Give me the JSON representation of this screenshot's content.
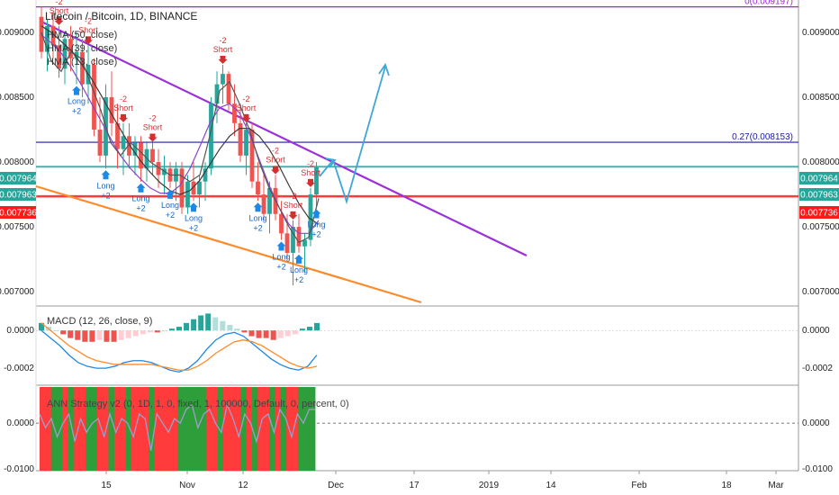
{
  "chart_data": {
    "type": "candlestick",
    "title": "Litecoin / Bitcoin, 1D, BINANCE",
    "indicators": [
      "HMA (50, close)",
      "HMA (39, close)",
      "HMA (13, close)"
    ],
    "x_ticks": [
      "15",
      "Nov",
      "12",
      "Dec",
      "17",
      "2019",
      "14",
      "Feb",
      "18",
      "Mar"
    ],
    "y_ticks": [
      "0.009000",
      "0.008500",
      "0.008000",
      "0.007500",
      "0.007000"
    ],
    "ylim": [
      0.00689,
      0.00925
    ],
    "price_badges": [
      {
        "label": "0.007964",
        "value": 0.007964,
        "color": "#26a69a"
      },
      {
        "label": "0.007963",
        "value": 0.007963,
        "color": "#26a69a"
      },
      {
        "label": "0.007736",
        "value": 0.007736,
        "color": "#ff1a1a"
      }
    ],
    "fib_levels": [
      {
        "label": "0(0.009197)",
        "value": 0.009197,
        "color": "#a020f0"
      },
      {
        "label": "0.27(0.008153)",
        "value": 0.008153,
        "color": "#1a1aa8"
      }
    ],
    "candles": [
      {
        "o": 0.00912,
        "h": 0.0092,
        "l": 0.0088,
        "c": 0.00885
      },
      {
        "o": 0.00885,
        "h": 0.0091,
        "l": 0.0087,
        "c": 0.00905
      },
      {
        "o": 0.00905,
        "h": 0.00915,
        "l": 0.0088,
        "c": 0.0089
      },
      {
        "o": 0.0089,
        "h": 0.00905,
        "l": 0.00865,
        "c": 0.00872
      },
      {
        "o": 0.00872,
        "h": 0.009,
        "l": 0.0086,
        "c": 0.00895
      },
      {
        "o": 0.00895,
        "h": 0.00905,
        "l": 0.0087,
        "c": 0.0088
      },
      {
        "o": 0.0088,
        "h": 0.009,
        "l": 0.0086,
        "c": 0.00885
      },
      {
        "o": 0.00885,
        "h": 0.00895,
        "l": 0.0085,
        "c": 0.0086
      },
      {
        "o": 0.0086,
        "h": 0.0089,
        "l": 0.00845,
        "c": 0.00875
      },
      {
        "o": 0.00875,
        "h": 0.0088,
        "l": 0.0082,
        "c": 0.00825
      },
      {
        "o": 0.00825,
        "h": 0.0085,
        "l": 0.008,
        "c": 0.00805
      },
      {
        "o": 0.00805,
        "h": 0.0086,
        "l": 0.00795,
        "c": 0.0085
      },
      {
        "o": 0.0085,
        "h": 0.0087,
        "l": 0.0082,
        "c": 0.0083
      },
      {
        "o": 0.0083,
        "h": 0.00845,
        "l": 0.00795,
        "c": 0.0081
      },
      {
        "o": 0.0081,
        "h": 0.0083,
        "l": 0.0079,
        "c": 0.0082
      },
      {
        "o": 0.0082,
        "h": 0.0083,
        "l": 0.00795,
        "c": 0.00805
      },
      {
        "o": 0.00805,
        "h": 0.0082,
        "l": 0.0079,
        "c": 0.00815
      },
      {
        "o": 0.00815,
        "h": 0.0082,
        "l": 0.00785,
        "c": 0.00795
      },
      {
        "o": 0.00795,
        "h": 0.00815,
        "l": 0.00785,
        "c": 0.0081
      },
      {
        "o": 0.0081,
        "h": 0.00815,
        "l": 0.0079,
        "c": 0.008
      },
      {
        "o": 0.008,
        "h": 0.0081,
        "l": 0.0078,
        "c": 0.0079
      },
      {
        "o": 0.0079,
        "h": 0.00805,
        "l": 0.00775,
        "c": 0.00795
      },
      {
        "o": 0.00795,
        "h": 0.008,
        "l": 0.0078,
        "c": 0.00785
      },
      {
        "o": 0.00785,
        "h": 0.008,
        "l": 0.0077,
        "c": 0.00795
      },
      {
        "o": 0.00795,
        "h": 0.008,
        "l": 0.0076,
        "c": 0.00765
      },
      {
        "o": 0.00765,
        "h": 0.0079,
        "l": 0.0076,
        "c": 0.00785
      },
      {
        "o": 0.00785,
        "h": 0.008,
        "l": 0.0077,
        "c": 0.00775
      },
      {
        "o": 0.00775,
        "h": 0.0079,
        "l": 0.00765,
        "c": 0.00785
      },
      {
        "o": 0.00785,
        "h": 0.008,
        "l": 0.0077,
        "c": 0.00795
      },
      {
        "o": 0.00795,
        "h": 0.0085,
        "l": 0.0079,
        "c": 0.00845
      },
      {
        "o": 0.00845,
        "h": 0.0087,
        "l": 0.0083,
        "c": 0.0086
      },
      {
        "o": 0.0086,
        "h": 0.00875,
        "l": 0.00845,
        "c": 0.00868
      },
      {
        "o": 0.00868,
        "h": 0.0087,
        "l": 0.0084,
        "c": 0.00845
      },
      {
        "o": 0.00845,
        "h": 0.0086,
        "l": 0.0082,
        "c": 0.0083
      },
      {
        "o": 0.0083,
        "h": 0.00845,
        "l": 0.008,
        "c": 0.00805
      },
      {
        "o": 0.00805,
        "h": 0.0083,
        "l": 0.0079,
        "c": 0.00825
      },
      {
        "o": 0.00825,
        "h": 0.0083,
        "l": 0.0078,
        "c": 0.00785
      },
      {
        "o": 0.00785,
        "h": 0.008,
        "l": 0.0077,
        "c": 0.00775
      },
      {
        "o": 0.00775,
        "h": 0.0079,
        "l": 0.00755,
        "c": 0.0076
      },
      {
        "o": 0.0076,
        "h": 0.00785,
        "l": 0.00745,
        "c": 0.0078
      },
      {
        "o": 0.0078,
        "h": 0.0079,
        "l": 0.00755,
        "c": 0.0076
      },
      {
        "o": 0.0076,
        "h": 0.0077,
        "l": 0.0074,
        "c": 0.00745
      },
      {
        "o": 0.00745,
        "h": 0.0076,
        "l": 0.00725,
        "c": 0.0073
      },
      {
        "o": 0.0073,
        "h": 0.00755,
        "l": 0.00705,
        "c": 0.0075
      },
      {
        "o": 0.0075,
        "h": 0.0076,
        "l": 0.0073,
        "c": 0.00735
      },
      {
        "o": 0.00735,
        "h": 0.00745,
        "l": 0.00715,
        "c": 0.0074
      },
      {
        "o": 0.0074,
        "h": 0.0078,
        "l": 0.00735,
        "c": 0.00775
      },
      {
        "o": 0.00775,
        "h": 0.008,
        "l": 0.00765,
        "c": 0.00796
      }
    ],
    "hma50": [
      0.00905,
      0.009,
      0.00893,
      0.00886,
      0.00876,
      0.00865,
      0.00852,
      0.00838,
      0.00825,
      0.00812,
      0.00801,
      0.00792,
      0.00784,
      0.00778,
      0.00775,
      0.00778,
      0.00786,
      0.00798,
      0.0081,
      0.0082,
      0.00826,
      0.00826,
      0.0082,
      0.0081,
      0.00797,
      0.00782,
      0.00768,
      0.00757,
      0.00752
    ],
    "hma39": [
      0.00898,
      0.00892,
      0.00884,
      0.00873,
      0.0086,
      0.00846,
      0.00832,
      0.00818,
      0.00805,
      0.00795,
      0.00787,
      0.0078,
      0.00776,
      0.00776,
      0.00782,
      0.00795,
      0.00812,
      0.0083,
      0.00842,
      0.00845,
      0.00838,
      0.00822,
      0.00802,
      0.00782,
      0.00765,
      0.00752,
      0.00745,
      0.00745,
      0.00755
    ],
    "hma13": [
      0.009,
      0.00878,
      0.0087,
      0.00885,
      0.0088,
      0.0086,
      0.0084,
      0.00815,
      0.00805,
      0.00815,
      0.00808,
      0.008,
      0.00795,
      0.0079,
      0.0079,
      0.00785,
      0.0079,
      0.0082,
      0.00855,
      0.00862,
      0.00845,
      0.00825,
      0.008,
      0.0078,
      0.00765,
      0.0075,
      0.00738,
      0.00742,
      0.00772
    ],
    "signals": [
      {
        "i": 3,
        "type": "Short",
        "label": "Short",
        "sub": "-2"
      },
      {
        "i": 6,
        "type": "Long",
        "label": "Long",
        "sub": "+2"
      },
      {
        "i": 8,
        "type": "Short",
        "label": "Short",
        "sub": "-2"
      },
      {
        "i": 11,
        "type": "Long",
        "label": "Long",
        "sub": "+2"
      },
      {
        "i": 14,
        "type": "Short",
        "label": "Short",
        "sub": "-2"
      },
      {
        "i": 17,
        "type": "Long",
        "label": "Long",
        "sub": "+2"
      },
      {
        "i": 19,
        "type": "Short",
        "label": "Short",
        "sub": "-2"
      },
      {
        "i": 22,
        "type": "Long",
        "label": "Long",
        "sub": "+2"
      },
      {
        "i": 26,
        "type": "Long",
        "label": "Long",
        "sub": "+2"
      },
      {
        "i": 31,
        "type": "Short",
        "label": "Short",
        "sub": "-2"
      },
      {
        "i": 35,
        "type": "Short",
        "label": "Short",
        "sub": "-2"
      },
      {
        "i": 37,
        "type": "Long",
        "label": "Long",
        "sub": "+2"
      },
      {
        "i": 40,
        "type": "Short",
        "label": "Short",
        "sub": "-2"
      },
      {
        "i": 41,
        "type": "Long",
        "label": "Long",
        "sub": "+2"
      },
      {
        "i": 43,
        "type": "Short",
        "label": "Short",
        "sub": "-2"
      },
      {
        "i": 44,
        "type": "Long",
        "label": "Long",
        "sub": "+2"
      },
      {
        "i": 46,
        "type": "Short",
        "label": "Short",
        "sub": "-2"
      },
      {
        "i": 47,
        "type": "Long",
        "label": "Long",
        "sub": "+2"
      }
    ],
    "macd": {
      "title": "MACD (12, 26, close, 9)",
      "y_ticks": [
        "0.0000",
        "-0.0002"
      ],
      "ylim": [
        -0.00029,
        0.00013
      ],
      "hist": [
        4e-05,
        2e-05,
        0.0,
        -2e-05,
        -4e-05,
        -5e-05,
        -6e-05,
        -6e-05,
        -5e-05,
        -6e-05,
        -6e-05,
        -5e-05,
        -4e-05,
        -3e-05,
        -2e-05,
        -1e-05,
        -1e-05,
        -5e-06,
        1e-05,
        2e-05,
        4e-05,
        6e-05,
        8e-05,
        9e-05,
        7e-05,
        5e-05,
        3e-05,
        1e-05,
        -1e-05,
        -3e-05,
        -4e-05,
        -4e-05,
        -5e-05,
        -4e-05,
        -3e-05,
        -2e-05,
        1e-05,
        2e-05,
        4e-05
      ],
      "macd_line": [
        0.0,
        -4e-05,
        -8e-05,
        -0.00013,
        -0.00017,
        -0.00019,
        -0.0002,
        -0.0002,
        -0.00019,
        -0.00017,
        -0.00016,
        -0.00016,
        -0.00017,
        -0.00019,
        -0.00021,
        -0.00022,
        -0.0002,
        -0.00016,
        -0.0001,
        -5e-05,
        -2e-05,
        -1e-05,
        -3e-05,
        -7e-05,
        -0.00011,
        -0.00015,
        -0.00018,
        -0.0002,
        -0.00021,
        -0.00019,
        -0.00013
      ],
      "signal_line": [
        4e-05,
        0.0,
        -4e-05,
        -8e-05,
        -0.00011,
        -0.00014,
        -0.00016,
        -0.00017,
        -0.00018,
        -0.00018,
        -0.00018,
        -0.00018,
        -0.00018,
        -0.00019,
        -0.0002,
        -0.00021,
        -0.00021,
        -0.00019,
        -0.00016,
        -0.00012,
        -9e-05,
        -6e-05,
        -5e-05,
        -6e-05,
        -8e-05,
        -0.00011,
        -0.00014,
        -0.00017,
        -0.00019,
        -0.0002,
        -0.00019
      ]
    },
    "ann": {
      "title": "ANN Strategy v2 (0, 1D, 1, 0, fixed, 1, 100000, Default, 0, percent, 0)",
      "y_ticks": [
        "0.0000",
        "-0.0100"
      ],
      "ylim": [
        -0.0104,
        0.0083
      ],
      "colors": [
        "r",
        "r",
        "g",
        "g",
        "r",
        "g",
        "r",
        "r",
        "g",
        "g",
        "r",
        "r",
        "g",
        "r",
        "r",
        "g",
        "r",
        "r",
        "r",
        "g",
        "r",
        "r",
        "r",
        "r",
        "g",
        "g",
        "g",
        "g",
        "g",
        "r",
        "r",
        "g",
        "r",
        "r",
        "r",
        "g",
        "r",
        "g",
        "r",
        "r",
        "g",
        "r",
        "g",
        "r",
        "r",
        "g",
        "g",
        "g"
      ],
      "line": [
        0.002,
        -0.001,
        0.001,
        -0.003,
        0.0,
        0.002,
        -0.004,
        0.001,
        -0.002,
        0.0,
        0.001,
        -0.003,
        0.002,
        -0.002,
        0.001,
        0.0,
        -0.003,
        0.002,
        0.001,
        -0.006,
        0.002,
        0.0,
        -0.002,
        0.001,
        0.0,
        0.003,
        0.004,
        -0.001,
        0.002,
        0.003,
        0.0,
        -0.002,
        0.004,
        0.001,
        -0.003,
        0.002,
        0.0,
        -0.004,
        0.001,
        0.002,
        -0.002,
        0.003,
        0.001,
        -0.003,
        0.002,
        0.0,
        0.003,
        0.003
      ]
    }
  }
}
